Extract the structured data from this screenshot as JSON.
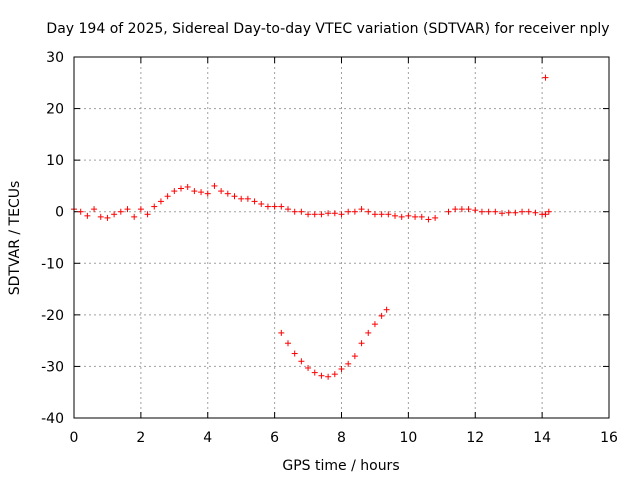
{
  "chart_data": {
    "type": "scatter",
    "title": "Day 194 of 2025, Sidereal Day-to-day VTEC variation (SDTVAR) for receiver nply",
    "xlabel": "GPS time / hours",
    "ylabel": "SDTVAR / TECUs",
    "xlim": [
      0,
      16
    ],
    "ylim": [
      -40,
      30
    ],
    "xticks": [
      "0",
      "2",
      "4",
      "6",
      "8",
      "10",
      "12",
      "14",
      "16"
    ],
    "yticks": [
      "30",
      "20",
      "10",
      "0",
      "-10",
      "-20",
      "-30",
      "-40"
    ],
    "grid": true,
    "marker": "+",
    "series": [
      {
        "name": "SDTVAR",
        "color": "#ff0000",
        "x": [
          0.0,
          0.2,
          0.4,
          0.6,
          0.8,
          1.0,
          1.2,
          1.4,
          1.6,
          1.8,
          2.0,
          2.2,
          2.4,
          2.6,
          2.8,
          3.0,
          3.2,
          3.4,
          3.6,
          3.8,
          4.0,
          4.2,
          4.4,
          4.6,
          4.8,
          5.0,
          5.2,
          5.4,
          5.6,
          5.8,
          6.0,
          6.2,
          6.4,
          6.6,
          6.8,
          7.0,
          7.2,
          7.4,
          7.6,
          7.8,
          8.0,
          8.2,
          8.4,
          8.6,
          8.8,
          9.0,
          9.2,
          9.4,
          9.6,
          9.8,
          10.0,
          10.2,
          10.4,
          10.6,
          10.8,
          11.2,
          11.4,
          11.6,
          11.8,
          12.0,
          12.2,
          12.4,
          12.6,
          12.8,
          13.0,
          13.2,
          13.4,
          13.6,
          13.8,
          14.0,
          14.1,
          14.2,
          6.2,
          6.4,
          6.6,
          6.8,
          7.0,
          7.2,
          7.4,
          7.6,
          7.8,
          8.0,
          8.2,
          8.4,
          8.6,
          8.8,
          9.0,
          9.2,
          9.35,
          14.1
        ],
        "y": [
          0.5,
          0.0,
          -0.8,
          0.5,
          -1.0,
          -1.2,
          -0.5,
          0.0,
          0.5,
          -1.0,
          0.5,
          -0.5,
          1.0,
          2.0,
          3.0,
          4.0,
          4.5,
          4.8,
          4.0,
          3.8,
          3.5,
          5.0,
          4.0,
          3.5,
          3.0,
          2.5,
          2.5,
          2.0,
          1.5,
          1.0,
          1.0,
          1.0,
          0.5,
          0.0,
          0.0,
          -0.5,
          -0.5,
          -0.5,
          -0.3,
          -0.3,
          -0.5,
          0.0,
          0.0,
          0.5,
          0.0,
          -0.5,
          -0.5,
          -0.5,
          -0.8,
          -1.0,
          -0.8,
          -1.0,
          -1.0,
          -1.5,
          -1.2,
          0.0,
          0.5,
          0.5,
          0.5,
          0.3,
          0.0,
          0.0,
          0.0,
          -0.3,
          -0.2,
          -0.2,
          0.0,
          0.0,
          -0.2,
          -0.5,
          -0.5,
          0.0,
          -23.5,
          -25.5,
          -27.5,
          -29.0,
          -30.3,
          -31.2,
          -31.8,
          -32.0,
          -31.5,
          -30.5,
          -29.5,
          -28.0,
          -25.5,
          -23.5,
          -21.8,
          -20.2,
          -19.0,
          26.0
        ]
      }
    ]
  }
}
